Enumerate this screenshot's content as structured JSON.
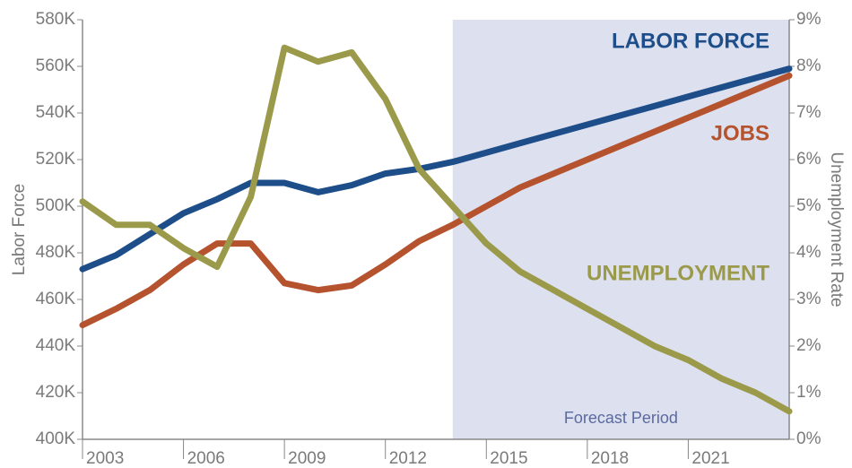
{
  "chart_data": {
    "type": "line",
    "y_label": "Labor Force",
    "y2_label": "Unemployment Rate",
    "forecast_period": {
      "label": "Forecast Period",
      "start": 2014
    },
    "x": [
      2003,
      2004,
      2005,
      2006,
      2007,
      2008,
      2009,
      2010,
      2011,
      2012,
      2013,
      2014,
      2015,
      2016,
      2017,
      2018,
      2019,
      2020,
      2021,
      2022,
      2023,
      2024
    ],
    "xlim": [
      2003,
      2024
    ],
    "xticks": [
      2003,
      2006,
      2009,
      2012,
      2015,
      2018,
      2021
    ],
    "ylim": [
      400000,
      580000
    ],
    "yticks": [
      {
        "value": 400000,
        "label": "400K"
      },
      {
        "value": 420000,
        "label": "420K"
      },
      {
        "value": 440000,
        "label": "440K"
      },
      {
        "value": 460000,
        "label": "460K"
      },
      {
        "value": 480000,
        "label": "480K"
      },
      {
        "value": 500000,
        "label": "500K"
      },
      {
        "value": 520000,
        "label": "520K"
      },
      {
        "value": 540000,
        "label": "540K"
      },
      {
        "value": 560000,
        "label": "560K"
      },
      {
        "value": 580000,
        "label": "580K"
      }
    ],
    "y2lim": [
      0,
      9
    ],
    "y2ticks": [
      {
        "value": 0,
        "label": "0%"
      },
      {
        "value": 1,
        "label": "1%"
      },
      {
        "value": 2,
        "label": "2%"
      },
      {
        "value": 3,
        "label": "3%"
      },
      {
        "value": 4,
        "label": "4%"
      },
      {
        "value": 5,
        "label": "5%"
      },
      {
        "value": 6,
        "label": "6%"
      },
      {
        "value": 7,
        "label": "7%"
      },
      {
        "value": 8,
        "label": "8%"
      },
      {
        "value": 9,
        "label": "9%"
      }
    ],
    "series": [
      {
        "name": "LABOR FORCE",
        "color": "#1d4e89",
        "values": [
          473000,
          479000,
          488000,
          497000,
          503000,
          510000,
          510000,
          506000,
          509000,
          514000,
          516000,
          519000,
          523000,
          527000,
          531000,
          535000,
          539000,
          543000,
          547000,
          551000,
          555000,
          559000
        ]
      },
      {
        "name": "JOBS",
        "color": "#b5532e",
        "values": [
          449000,
          456000,
          464000,
          475000,
          484000,
          484000,
          467000,
          464000,
          466000,
          475000,
          485000,
          492000,
          500000,
          508000,
          514000,
          520000,
          526000,
          532000,
          538000,
          544000,
          550000,
          556000
        ]
      },
      {
        "name": "UNEMPLOYMENT",
        "color": "#9a9a4a",
        "axis": "y2",
        "values": [
          5.1,
          4.6,
          4.6,
          4.1,
          3.7,
          5.2,
          8.4,
          8.1,
          8.3,
          7.3,
          5.8,
          5.0,
          4.2,
          3.6,
          3.2,
          2.8,
          2.4,
          2.0,
          1.7,
          1.3,
          1.0,
          0.6
        ]
      }
    ]
  }
}
